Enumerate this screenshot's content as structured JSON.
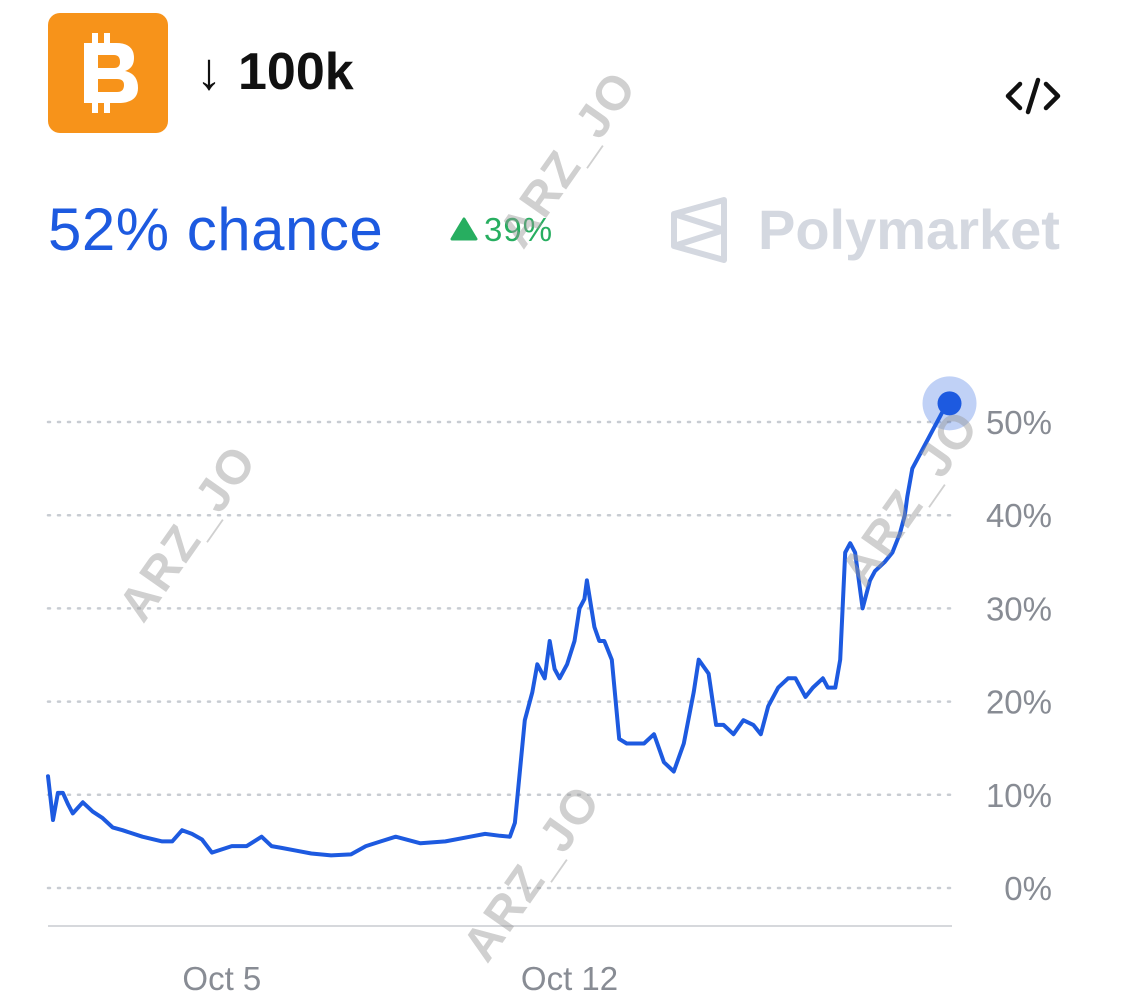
{
  "header": {
    "logo_icon": "bitcoin-icon",
    "logo_color": "#f7931a",
    "arrow": "↓",
    "title": "100k",
    "embed_icon": "code-embed-icon"
  },
  "probability": {
    "chance_text": "52% chance",
    "change_text": "39%",
    "change_direction": "up",
    "change_color": "#27ae60",
    "accent_color": "#1d5ae0"
  },
  "brand": {
    "name": "Polymarket",
    "icon": "polymarket-logo-icon"
  },
  "watermark": "ARZ_JO",
  "chart_data": {
    "type": "line",
    "title": "",
    "xlabel": "",
    "ylabel": "",
    "ylim": [
      0,
      55
    ],
    "yticks": [
      0,
      10,
      20,
      30,
      40,
      50
    ],
    "ytick_labels": [
      "0%",
      "10%",
      "20%",
      "30%",
      "40%",
      "50%"
    ],
    "xlim": [
      1.5,
      19.7
    ],
    "xticks": [
      5,
      12
    ],
    "xtick_labels": [
      "Oct 5",
      "Oct 12"
    ],
    "grid": true,
    "y_axis_side": "right",
    "series": [
      {
        "color": "#1d5ae0",
        "x": [
          1.5,
          1.6,
          1.7,
          1.8,
          1.9,
          2.0,
          2.2,
          2.4,
          2.6,
          2.8,
          3.0,
          3.4,
          3.8,
          4.0,
          4.2,
          4.4,
          4.6,
          4.8,
          5.2,
          5.5,
          5.8,
          6.0,
          6.2,
          6.5,
          6.8,
          7.2,
          7.6,
          7.9,
          8.2,
          8.5,
          9.0,
          9.5,
          10.0,
          10.3,
          10.6,
          10.8,
          10.9,
          11.1,
          11.25,
          11.35,
          11.5,
          11.6,
          11.7,
          11.8,
          11.95,
          12.1,
          12.2,
          12.3,
          12.35,
          12.5,
          12.6,
          12.7,
          12.85,
          13.0,
          13.15,
          13.3,
          13.5,
          13.7,
          13.9,
          14.1,
          14.3,
          14.5,
          14.6,
          14.8,
          14.95,
          15.1,
          15.3,
          15.5,
          15.7,
          15.85,
          16.0,
          16.2,
          16.4,
          16.55,
          16.75,
          16.9,
          17.1,
          17.2,
          17.35,
          17.45,
          17.55,
          17.65,
          17.75,
          17.9,
          18.05,
          18.15,
          18.35,
          18.5,
          18.65,
          18.75,
          18.8,
          18.9,
          19.1,
          19.3,
          19.45,
          19.55,
          19.65
        ],
        "y": [
          12,
          7.3,
          10.2,
          10.2,
          9.0,
          8.0,
          9.2,
          8.2,
          7.5,
          6.5,
          6.2,
          5.5,
          5.0,
          5.0,
          6.2,
          5.8,
          5.2,
          3.8,
          4.5,
          4.5,
          5.5,
          4.5,
          4.3,
          4.0,
          3.7,
          3.5,
          3.6,
          4.5,
          5.0,
          5.5,
          4.8,
          5.0,
          5.5,
          5.8,
          5.6,
          5.5,
          7.0,
          18,
          21,
          24,
          22.5,
          26.5,
          23.5,
          22.5,
          24,
          26.5,
          30,
          31,
          33,
          28,
          26.5,
          26.5,
          24.5,
          16,
          15.5,
          15.5,
          15.5,
          16.5,
          13.5,
          12.5,
          15.5,
          21,
          24.5,
          23,
          17.5,
          17.5,
          16.5,
          18.0,
          17.5,
          16.5,
          19.5,
          21.5,
          22.5,
          22.5,
          20.5,
          21.5,
          22.5,
          21.5,
          21.5,
          24.5,
          36,
          37,
          36,
          30,
          33,
          34,
          35,
          36,
          38,
          40,
          42,
          45,
          47,
          49,
          50.5,
          51.5,
          52
        ]
      }
    ],
    "endpoint_marker": {
      "x": 19.65,
      "y": 52
    }
  }
}
